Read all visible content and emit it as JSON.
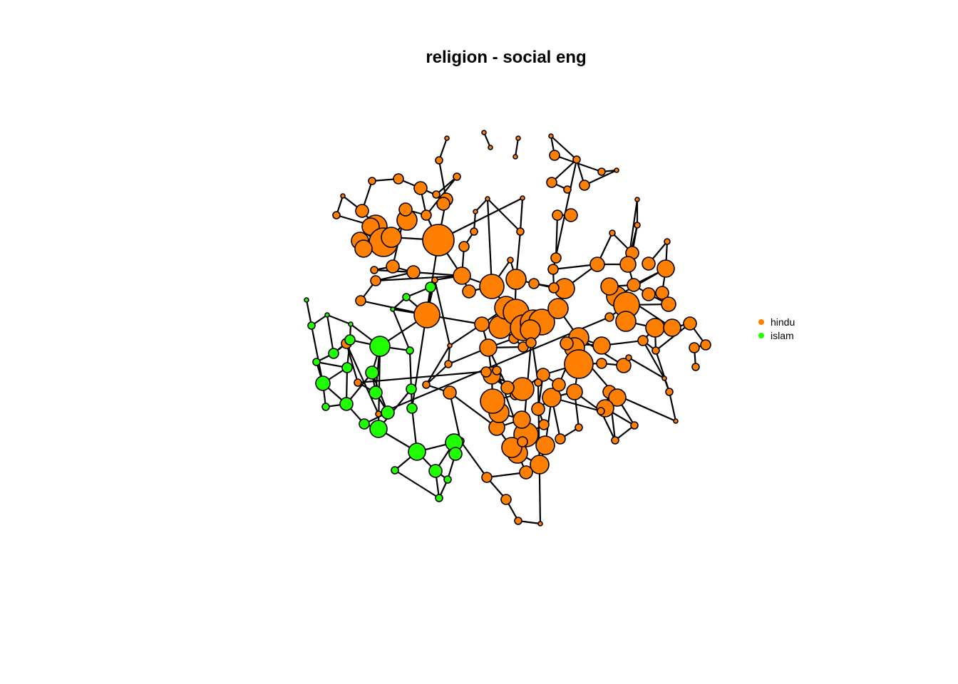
{
  "title": "religion - social eng",
  "legend": [
    {
      "label": "hindu",
      "color": "#FF7F00"
    },
    {
      "label": "islam",
      "color": "#1FFF00"
    }
  ],
  "network": {
    "nodes": {
      "1": "hindu",
      "2": "hindu",
      "3": "hindu",
      "4": "hindu",
      "5": "hindu",
      "6": "hindu",
      "7": "hindu",
      "8": "hindu",
      "9": "hindu",
      "10": "hindu",
      "11": "hindu",
      "12": "hindu",
      "13": "hindu",
      "14": "hindu",
      "15": "hindu",
      "16": "hindu",
      "17": "hindu",
      "18": "hindu",
      "19": "hindu",
      "20": "hindu",
      "21": "hindu",
      "22": "hindu",
      "23": "hindu",
      "24": "hindu",
      "25": "hindu",
      "26": "hindu",
      "27": "hindu",
      "28": "hindu",
      "29": "hindu",
      "30": "hindu",
      "31": "hindu",
      "32": "hindu",
      "33": "hindu",
      "34": "hindu",
      "35": "hindu",
      "36": "hindu",
      "37": "hindu",
      "38": "hindu",
      "39": "hindu",
      "40": "hindu",
      "41": "hindu",
      "42": "hindu",
      "43": "hindu",
      "44": "hindu",
      "45": "hindu",
      "46": "hindu",
      "47": "hindu",
      "48": "hindu",
      "49": "hindu",
      "50": "hindu",
      "51": "hindu",
      "52": "hindu",
      "53": "hindu",
      "54": "hindu",
      "55": "hindu",
      "56": "hindu",
      "57": "hindu",
      "58": "hindu",
      "59": "hindu",
      "60": "hindu",
      "61": "hindu",
      "62": "hindu",
      "63": "hindu",
      "64": "hindu",
      "65": "hindu",
      "66": "hindu",
      "67": "hindu",
      "68": "hindu",
      "69": "hindu",
      "70": "hindu",
      "71": "hindu",
      "72": "hindu",
      "73": "hindu",
      "74": "hindu",
      "75": "hindu",
      "76": "hindu",
      "77": "hindu",
      "78": "hindu",
      "79": "hindu",
      "80": "hindu",
      "81": "hindu",
      "82": "hindu",
      "83": "hindu",
      "84": "hindu",
      "85": "hindu",
      "86": "hindu",
      "87": "hindu",
      "88": "hindu",
      "89": "hindu",
      "90": "hindu",
      "91": "hindu",
      "92": "hindu",
      "93": "hindu",
      "94": "hindu",
      "95": "hindu",
      "96": "hindu",
      "97": "hindu",
      "98": "hindu",
      "99": "hindu",
      "100": "hindu",
      "101": "hindu",
      "102": "hindu",
      "103": "hindu",
      "104": "hindu",
      "105": "hindu",
      "106": "hindu",
      "107": "hindu",
      "108": "hindu",
      "109": "hindu",
      "110": "hindu",
      "111": "hindu",
      "112": "hindu",
      "113": "hindu",
      "114": "hindu",
      "115": "hindu",
      "116": "hindu",
      "117": "hindu",
      "118": "hindu",
      "119": "hindu",
      "120": "hindu",
      "121": "hindu",
      "122": "hindu",
      "123": "hindu",
      "124": "hindu",
      "125": "hindu",
      "126": "hindu",
      "127": "hindu",
      "128": "hindu",
      "129": "hindu",
      "130": "hindu",
      "131": "hindu",
      "132": "hindu",
      "133": "hindu",
      "134": "hindu",
      "135": "hindu",
      "136": "hindu",
      "137": "hindu",
      "138": "hindu",
      "139": "hindu",
      "140": "hindu",
      "141": "hindu",
      "142": "hindu",
      "143": "hindu",
      "144": "hindu",
      "145": "hindu",
      "146": "hindu",
      "147": "hindu",
      "148": "hindu",
      "149": "hindu",
      "150": "hindu",
      "151": "hindu",
      "152": "hindu",
      "153": "hindu",
      "201": "islam",
      "202": "islam",
      "203": "islam",
      "204": "islam",
      "205": "islam",
      "206": "islam",
      "207": "islam",
      "208": "islam",
      "209": "islam",
      "210": "islam",
      "211": "islam",
      "212": "islam",
      "213": "islam",
      "214": "islam",
      "215": "islam",
      "216": "islam",
      "217": "islam",
      "218": "islam",
      "219": "islam",
      "220": "islam",
      "221": "islam",
      "222": "islam",
      "223": "islam",
      "224": "islam",
      "225": "islam",
      "226": "islam",
      "227": "islam",
      "228": "islam",
      "229": "islam",
      "230": "islam"
    },
    "edges": [
      [
        1,
        2
      ],
      [
        3,
        4
      ],
      [
        5,
        6
      ],
      [
        7,
        8
      ],
      [
        7,
        9
      ],
      [
        8,
        10
      ],
      [
        10,
        11
      ],
      [
        11,
        12
      ],
      [
        9,
        13
      ],
      [
        13,
        14
      ],
      [
        15,
        16
      ],
      [
        15,
        17
      ],
      [
        17,
        18
      ],
      [
        9,
        18
      ],
      [
        18,
        19
      ],
      [
        19,
        20
      ],
      [
        20,
        21
      ],
      [
        21,
        22
      ],
      [
        22,
        23
      ],
      [
        23,
        24
      ],
      [
        22,
        24
      ],
      [
        25,
        26
      ],
      [
        26,
        27
      ],
      [
        27,
        28
      ],
      [
        28,
        29
      ],
      [
        29,
        30
      ],
      [
        30,
        31
      ],
      [
        27,
        32
      ],
      [
        31,
        33
      ],
      [
        32,
        34
      ],
      [
        33,
        35
      ],
      [
        35,
        36
      ],
      [
        34,
        37
      ],
      [
        37,
        38
      ],
      [
        38,
        39
      ],
      [
        39,
        40
      ],
      [
        40,
        41
      ],
      [
        38,
        42
      ],
      [
        42,
        43
      ],
      [
        43,
        44
      ],
      [
        44,
        45
      ],
      [
        45,
        46
      ],
      [
        46,
        47
      ],
      [
        47,
        48
      ],
      [
        48,
        49
      ],
      [
        49,
        50
      ],
      [
        50,
        51
      ],
      [
        51,
        52
      ],
      [
        52,
        53
      ],
      [
        53,
        54
      ],
      [
        54,
        55
      ],
      [
        55,
        56
      ],
      [
        56,
        57
      ],
      [
        57,
        58
      ],
      [
        58,
        59
      ],
      [
        59,
        60
      ],
      [
        60,
        61
      ],
      [
        61,
        62
      ],
      [
        62,
        63
      ],
      [
        63,
        64
      ],
      [
        64,
        65
      ],
      [
        65,
        66
      ],
      [
        66,
        67
      ],
      [
        67,
        68
      ],
      [
        68,
        69
      ],
      [
        69,
        70
      ],
      [
        70,
        71
      ],
      [
        71,
        72
      ],
      [
        72,
        73
      ],
      [
        73,
        74
      ],
      [
        74,
        75
      ],
      [
        75,
        76
      ],
      [
        76,
        77
      ],
      [
        77,
        78
      ],
      [
        78,
        79
      ],
      [
        79,
        80
      ],
      [
        80,
        81
      ],
      [
        81,
        82
      ],
      [
        82,
        83
      ],
      [
        83,
        84
      ],
      [
        84,
        85
      ],
      [
        85,
        86
      ],
      [
        86,
        87
      ],
      [
        87,
        88
      ],
      [
        88,
        89
      ],
      [
        89,
        90
      ],
      [
        90,
        91
      ],
      [
        91,
        92
      ],
      [
        92,
        93
      ],
      [
        93,
        94
      ],
      [
        94,
        95
      ],
      [
        95,
        96
      ],
      [
        96,
        97
      ],
      [
        97,
        98
      ],
      [
        98,
        99
      ],
      [
        99,
        100
      ],
      [
        100,
        101
      ],
      [
        101,
        102
      ],
      [
        102,
        103
      ],
      [
        103,
        104
      ],
      [
        104,
        105
      ],
      [
        105,
        106
      ],
      [
        106,
        107
      ],
      [
        107,
        108
      ],
      [
        108,
        109
      ],
      [
        109,
        110
      ],
      [
        110,
        111
      ],
      [
        111,
        112
      ],
      [
        112,
        113
      ],
      [
        113,
        114
      ],
      [
        114,
        115
      ],
      [
        115,
        116
      ],
      [
        116,
        117
      ],
      [
        117,
        118
      ],
      [
        118,
        119
      ],
      [
        119,
        120
      ],
      [
        120,
        121
      ],
      [
        121,
        122
      ],
      [
        122,
        123
      ],
      [
        123,
        124
      ],
      [
        124,
        125
      ],
      [
        125,
        126
      ],
      [
        126,
        127
      ],
      [
        127,
        128
      ],
      [
        128,
        129
      ],
      [
        129,
        130
      ],
      [
        130,
        131
      ],
      [
        131,
        132
      ],
      [
        132,
        133
      ],
      [
        133,
        134
      ],
      [
        134,
        135
      ],
      [
        135,
        136
      ],
      [
        136,
        137
      ],
      [
        137,
        138
      ],
      [
        138,
        139
      ],
      [
        139,
        140
      ],
      [
        140,
        141
      ],
      [
        141,
        142
      ],
      [
        142,
        143
      ],
      [
        143,
        144
      ],
      [
        144,
        145
      ],
      [
        145,
        146
      ],
      [
        146,
        147
      ],
      [
        147,
        148
      ],
      [
        148,
        149
      ],
      [
        149,
        150
      ],
      [
        150,
        151
      ],
      [
        151,
        152
      ],
      [
        152,
        153
      ],
      [
        201,
        202
      ],
      [
        202,
        203
      ],
      [
        203,
        204
      ],
      [
        204,
        205
      ],
      [
        205,
        206
      ],
      [
        206,
        207
      ],
      [
        207,
        208
      ],
      [
        208,
        209
      ],
      [
        209,
        210
      ],
      [
        210,
        211
      ],
      [
        211,
        212
      ],
      [
        212,
        213
      ],
      [
        213,
        214
      ],
      [
        214,
        215
      ],
      [
        215,
        216
      ],
      [
        216,
        217
      ],
      [
        217,
        218
      ],
      [
        218,
        219
      ],
      [
        219,
        220
      ],
      [
        220,
        221
      ],
      [
        221,
        222
      ],
      [
        222,
        223
      ],
      [
        223,
        224
      ],
      [
        224,
        225
      ],
      [
        225,
        226
      ],
      [
        226,
        227
      ],
      [
        227,
        228
      ],
      [
        228,
        229
      ],
      [
        229,
        230
      ]
    ]
  }
}
